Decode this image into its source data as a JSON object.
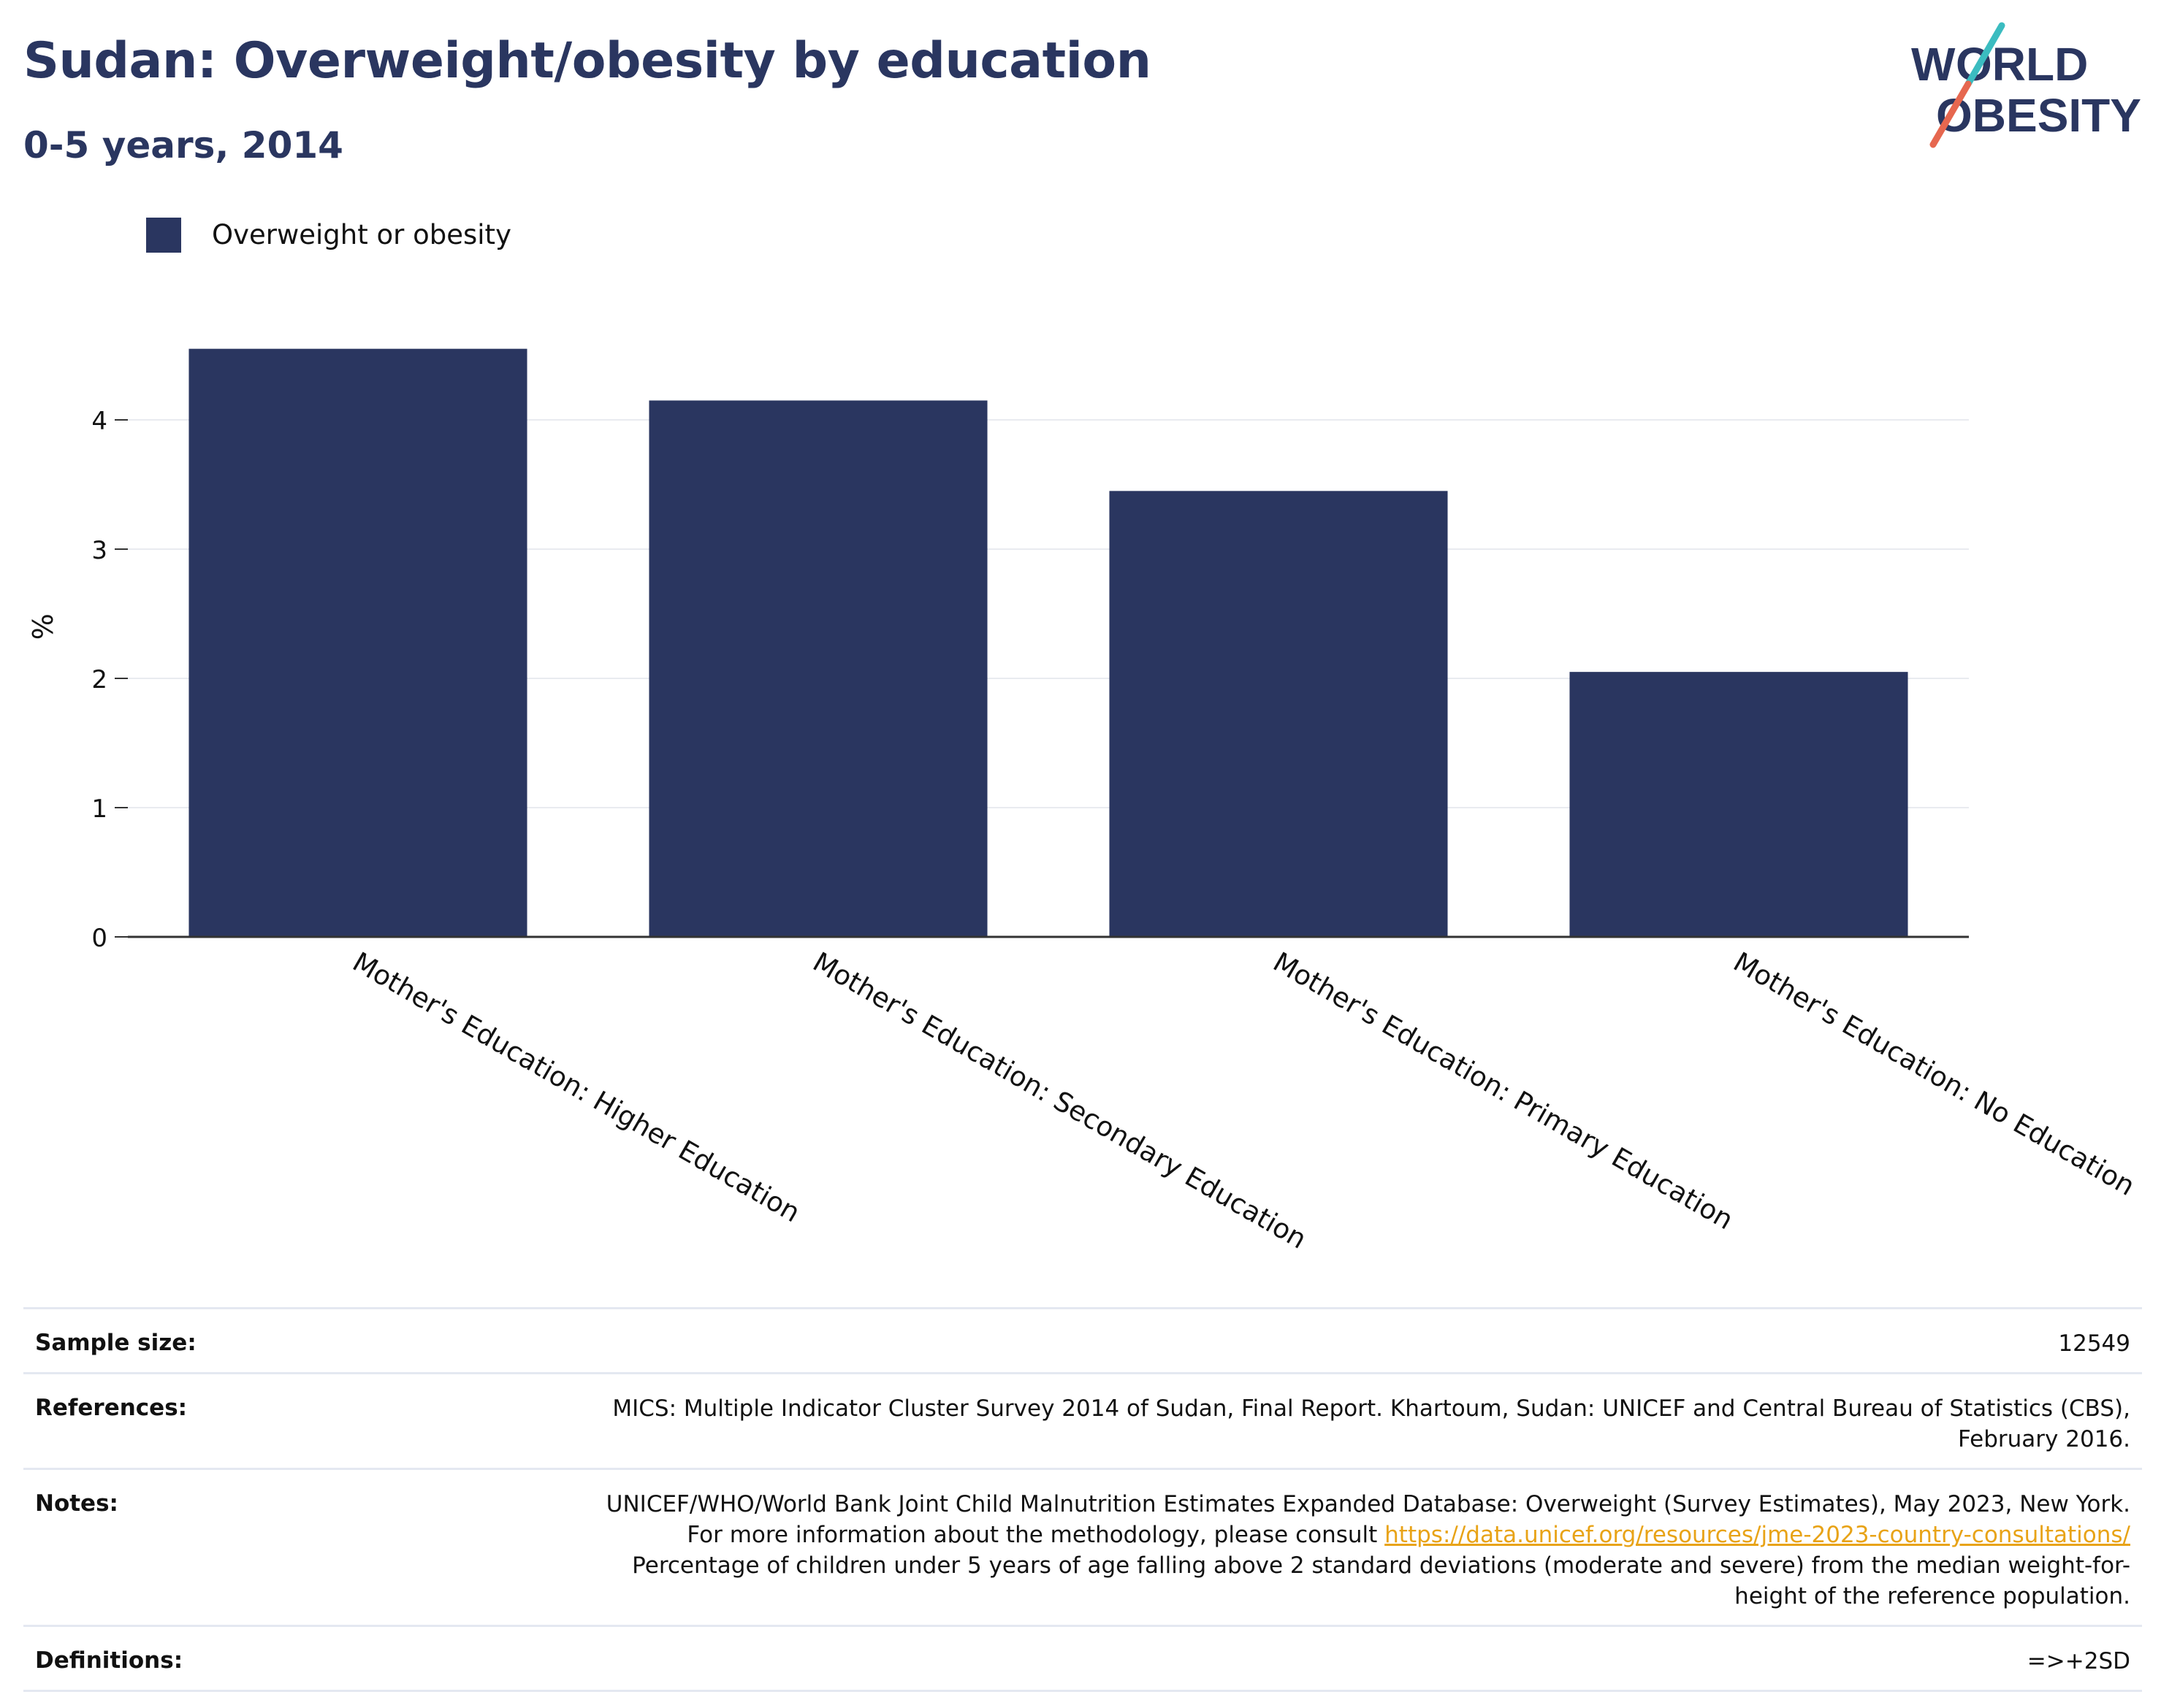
{
  "header": {
    "title": "Sudan: Overweight/obesity by education",
    "subtitle": "0-5 years, 2014",
    "logo_text": "WORLD OBESITY"
  },
  "colors": {
    "bar": "#2a3660",
    "title": "#2a3660",
    "grid": "#e9ebf0",
    "link": "#e8a317",
    "logo_teal": "#3bbcc0",
    "logo_red": "#e6674f"
  },
  "chart_data": {
    "type": "bar",
    "title": "Sudan: Overweight/obesity by education",
    "subtitle": "0-5 years, 2014",
    "ylabel": "%",
    "xlabel": "",
    "ylim": [
      0,
      4.9
    ],
    "yticks": [
      0,
      1,
      2,
      3,
      4
    ],
    "grid": true,
    "legend_position": "top-left",
    "categories": [
      "Mother's Education: Higher Education",
      "Mother's Education: Secondary Education",
      "Mother's Education: Primary Education",
      "Mother's Education: No Education"
    ],
    "series": [
      {
        "name": "Overweight or obesity",
        "values": [
          4.55,
          4.15,
          3.45,
          2.05
        ]
      }
    ]
  },
  "info": {
    "sample_size": {
      "label": "Sample size:",
      "value": "12549"
    },
    "references": {
      "label": "References:",
      "value": "MICS: Multiple Indicator Cluster Survey 2014 of Sudan, Final Report. Khartoum, Sudan: UNICEF and Central Bureau of Statistics (CBS), February 2016."
    },
    "notes": {
      "label": "Notes:",
      "text_before": "UNICEF/WHO/World Bank Joint Child Malnutrition Estimates Expanded Database: Overweight (Survey Estimates), May 2023, New York. For more information about the methodology, please consult ",
      "link": "https://data.unicef.org/resources/jme-2023-country-consultations/",
      "text_after": " Percentage of children under 5 years of age falling above 2 standard deviations (moderate and severe) from the median weight-for-height of the reference population."
    },
    "definitions": {
      "label": "Definitions:",
      "value": "=>+2SD"
    }
  }
}
